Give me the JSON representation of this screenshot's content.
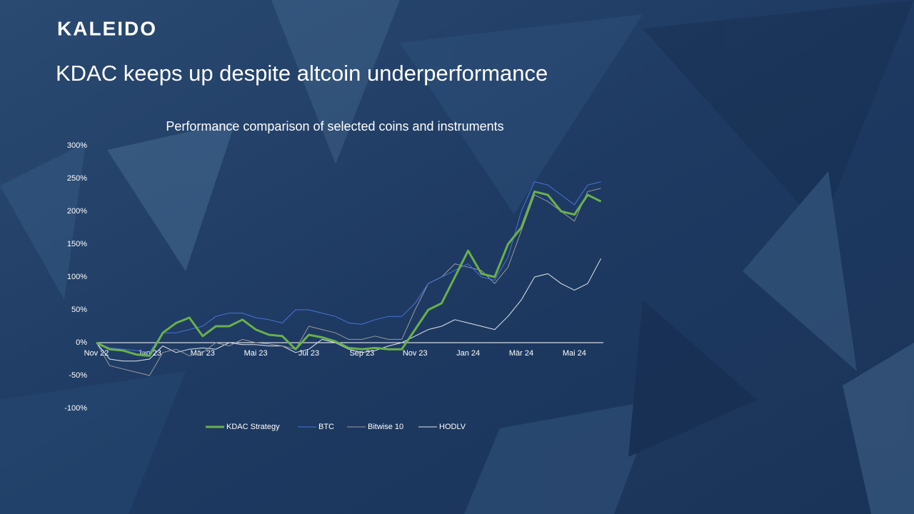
{
  "header": {
    "logo": "KALEIDO",
    "title": "KDAC keeps up despite altcoin underperformance"
  },
  "chart_data": {
    "type": "line",
    "title": "Performance comparison of selected coins and instruments",
    "x": [
      0,
      0.5,
      1,
      1.5,
      2,
      2.5,
      3,
      3.5,
      4,
      4.5,
      5,
      5.5,
      6,
      6.5,
      7,
      7.5,
      8,
      8.5,
      9,
      9.5,
      10,
      10.5,
      11,
      11.5,
      12,
      12.5,
      13,
      13.5,
      14,
      14.5,
      15,
      15.5,
      16,
      16.5,
      17,
      17.5,
      18,
      18.5,
      19
    ],
    "xlim": [
      0,
      19.2
    ],
    "xticks": [
      {
        "value": 0,
        "label": "Nov 22"
      },
      {
        "value": 2,
        "label": "Jan 23"
      },
      {
        "value": 4,
        "label": "Mär 23"
      },
      {
        "value": 6,
        "label": "Mai 23"
      },
      {
        "value": 8,
        "label": "Jul 23"
      },
      {
        "value": 10,
        "label": "Sep 23"
      },
      {
        "value": 12,
        "label": "Nov 23"
      },
      {
        "value": 14,
        "label": "Jan 24"
      },
      {
        "value": 16,
        "label": "Mär 24"
      },
      {
        "value": 18,
        "label": "Mai 24"
      }
    ],
    "ylim": [
      -100,
      300
    ],
    "yticks": [
      {
        "value": -100,
        "label": "-100%"
      },
      {
        "value": -50,
        "label": "-50%"
      },
      {
        "value": 0,
        "label": "0%"
      },
      {
        "value": 50,
        "label": "50%"
      },
      {
        "value": 100,
        "label": "100%"
      },
      {
        "value": 150,
        "label": "150%"
      },
      {
        "value": 200,
        "label": "200%"
      },
      {
        "value": 250,
        "label": "250%"
      },
      {
        "value": 300,
        "label": "300%"
      }
    ],
    "series": [
      {
        "name": "KDAC Strategy",
        "color": "#6ab04c",
        "values": [
          0,
          -10,
          -12,
          -18,
          -20,
          15,
          30,
          38,
          10,
          25,
          25,
          35,
          20,
          12,
          10,
          -10,
          12,
          8,
          2,
          -8,
          -10,
          -8,
          -10,
          -10,
          20,
          50,
          60,
          100,
          140,
          105,
          100,
          150,
          175,
          230,
          225,
          200,
          195,
          225,
          215
        ]
      },
      {
        "name": "BTC",
        "color": "#4a72d8",
        "values": [
          0,
          -8,
          -10,
          -12,
          -15,
          15,
          15,
          20,
          25,
          40,
          45,
          45,
          38,
          35,
          30,
          50,
          50,
          45,
          40,
          30,
          28,
          35,
          40,
          40,
          60,
          90,
          100,
          110,
          120,
          100,
          95,
          130,
          200,
          245,
          240,
          225,
          210,
          240,
          245
        ]
      },
      {
        "name": "Bitwise 10",
        "color": "#9a9a9a",
        "values": [
          0,
          -35,
          -40,
          -45,
          -50,
          -15,
          -10,
          -20,
          -15,
          0,
          -5,
          5,
          0,
          -2,
          -5,
          -10,
          25,
          20,
          15,
          5,
          5,
          10,
          5,
          5,
          50,
          90,
          100,
          120,
          115,
          110,
          90,
          115,
          170,
          225,
          215,
          200,
          185,
          230,
          235
        ]
      },
      {
        "name": "HODLV",
        "color": "#dfe6f0",
        "values": [
          0,
          -25,
          -28,
          -28,
          -25,
          -5,
          -15,
          -10,
          -8,
          -10,
          0,
          -3,
          -3,
          -5,
          -5,
          -15,
          -10,
          5,
          0,
          -10,
          -15,
          -12,
          -5,
          0,
          10,
          20,
          25,
          35,
          30,
          25,
          20,
          40,
          65,
          100,
          105,
          90,
          80,
          90,
          128
        ]
      }
    ]
  }
}
